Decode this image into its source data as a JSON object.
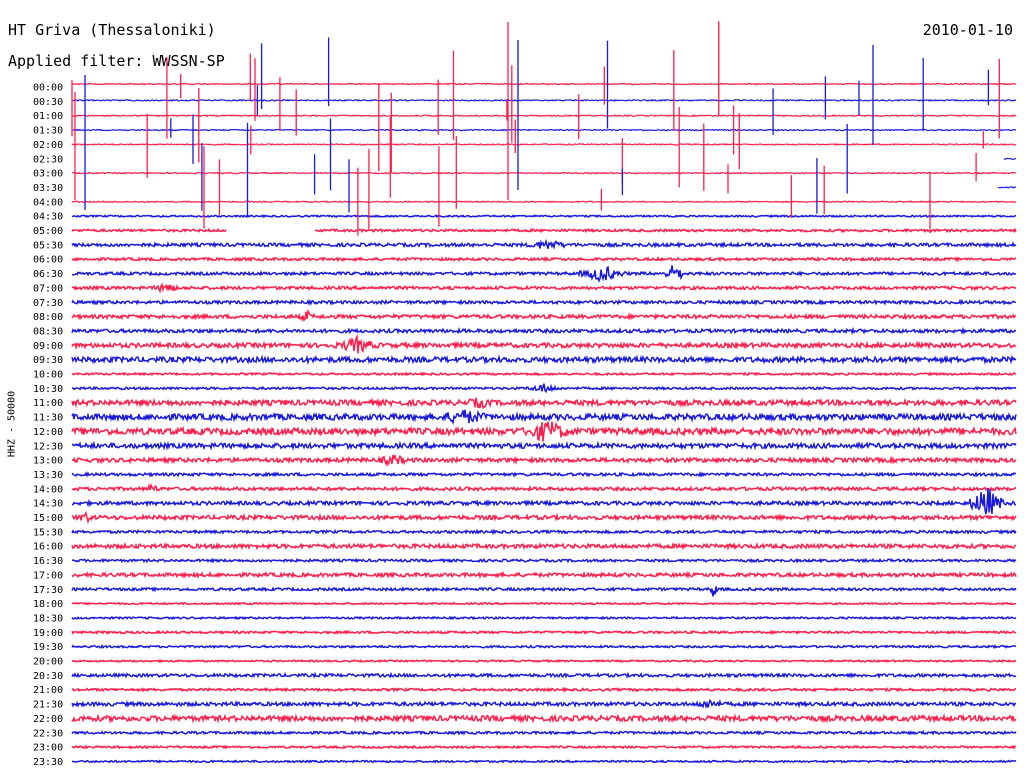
{
  "header": {
    "station": "HT Griva (Thessaloniki)",
    "filter": "Applied filter: WWSSN-SP",
    "date": "2010-01-10"
  },
  "chart_data": {
    "type": "seismogram",
    "title": "HT Griva (Thessaloniki)",
    "filter": "Applied filter: WWSSN-SP",
    "date": "2010-01-10",
    "ylabel": "HHZ - 50000",
    "row_labels": [
      "00:00",
      "00:30",
      "01:00",
      "01:30",
      "02:00",
      "02:30",
      "03:00",
      "03:30",
      "04:00",
      "04:30",
      "05:00",
      "05:30",
      "06:00",
      "06:30",
      "07:00",
      "07:30",
      "08:00",
      "08:30",
      "09:00",
      "09:30",
      "10:00",
      "10:30",
      "11:00",
      "11:30",
      "12:00",
      "12:30",
      "13:00",
      "13:30",
      "14:00",
      "14:30",
      "15:00",
      "15:30",
      "16:00",
      "16:30",
      "17:00",
      "17:30",
      "18:00",
      "18:30",
      "19:00",
      "19:30",
      "20:00",
      "20:30",
      "21:00",
      "21:30",
      "22:00",
      "22:30",
      "23:00",
      "23:30"
    ],
    "minutes_per_line": 30,
    "trace_colors": [
      "#ff1f4b",
      "#1a1adc"
    ],
    "noise_level": [
      0,
      0,
      0,
      0,
      0,
      0,
      0,
      0,
      0,
      0.8,
      1.2,
      1.6,
      1.3,
      1.4,
      1.5,
      1.5,
      1.8,
      1.7,
      2.2,
      2.6,
      1.0,
      1.1,
      2.6,
      3.0,
      3.2,
      2.4,
      2.0,
      1.4,
      1.6,
      1.8,
      2.0,
      1.3,
      2.0,
      1.2,
      1.8,
      1.3,
      0.8,
      0.9,
      1.1,
      1.0,
      0.8,
      1.5,
      1.2,
      1.8,
      2.6,
      1.2,
      1.0,
      0.9
    ],
    "events": [
      {
        "row": 5,
        "start_min": 0.0,
        "end_min": 29.6,
        "amplitude": 0
      },
      {
        "row": 7,
        "start_min": 0.0,
        "end_min": 29.4,
        "amplitude": 0
      },
      {
        "row": 10,
        "start_min": 4.9,
        "end_min": 7.7,
        "amplitude": 0
      },
      {
        "row": 11,
        "start_min": 14.1,
        "end_min": 16.1,
        "amplitude": 5
      },
      {
        "row": 13,
        "start_min": 16.1,
        "end_min": 17.6,
        "amplitude": 9
      },
      {
        "row": 13,
        "start_min": 18.8,
        "end_min": 19.5,
        "amplitude": 11
      },
      {
        "row": 14,
        "start_min": 2.6,
        "end_min": 3.4,
        "amplitude": 7
      },
      {
        "row": 16,
        "start_min": 7.2,
        "end_min": 7.7,
        "amplitude": 7
      },
      {
        "row": 18,
        "start_min": 8.3,
        "end_min": 9.8,
        "amplitude": 9
      },
      {
        "row": 21,
        "start_min": 14.4,
        "end_min": 15.6,
        "amplitude": 5
      },
      {
        "row": 22,
        "start_min": 12.2,
        "end_min": 13.7,
        "amplitude": 6
      },
      {
        "row": 23,
        "start_min": 11.2,
        "end_min": 13.7,
        "amplitude": 8
      },
      {
        "row": 24,
        "start_min": 14.1,
        "end_min": 16.1,
        "amplitude": 12
      },
      {
        "row": 26,
        "start_min": 9.5,
        "end_min": 10.9,
        "amplitude": 6
      },
      {
        "row": 28,
        "start_min": 2.3,
        "end_min": 2.8,
        "amplitude": 6
      },
      {
        "row": 29,
        "start_min": 28.5,
        "end_min": 29.6,
        "amplitude": 18
      },
      {
        "row": 30,
        "start_min": 0.0,
        "end_min": 0.8,
        "amplitude": 6
      },
      {
        "row": 35,
        "start_min": 20.3,
        "end_min": 20.5,
        "amplitude": 12
      },
      {
        "row": 43,
        "start_min": 19.5,
        "end_min": 21.0,
        "amplitude": 5
      }
    ],
    "spike_count": 60,
    "offset_rows": [
      0,
      1,
      2,
      3,
      4,
      5,
      6,
      7,
      8
    ]
  }
}
